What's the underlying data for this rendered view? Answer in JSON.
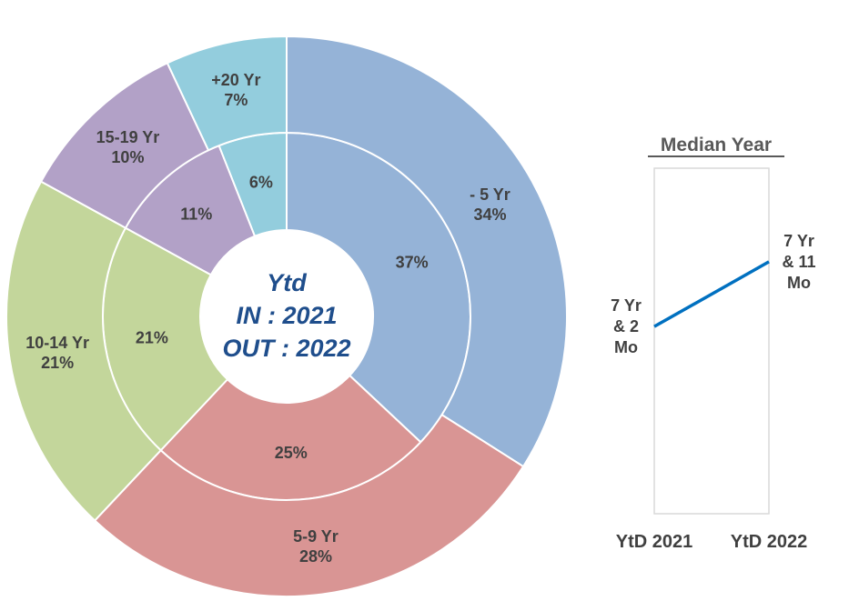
{
  "chart_data": [
    {
      "type": "pie",
      "subtype": "nested-donut",
      "center_text": [
        "Ytd",
        "IN : 2021",
        "OUT : 2022"
      ],
      "categories": [
        "- 5 Yr",
        "5-9 Yr",
        "10-14 Yr",
        "15-19 Yr",
        "+20 Yr"
      ],
      "colors": [
        "#95b3d7",
        "#d99594",
        "#c3d69b",
        "#b2a1c7",
        "#93cddd"
      ],
      "series": [
        {
          "ring": "inner",
          "values": [
            37,
            25,
            21,
            11,
            6
          ],
          "labels": [
            "37%",
            "25%",
            "21%",
            "11%",
            "6%"
          ]
        },
        {
          "ring": "outer",
          "values": [
            34,
            28,
            21,
            10,
            7
          ],
          "labels": [
            "34%",
            "28%",
            "21%",
            "10%",
            "7%"
          ]
        }
      ]
    },
    {
      "type": "line",
      "title": "Median Year",
      "categories": [
        "YtD 2021",
        "YtD 2022"
      ],
      "series": [
        {
          "values": [
            7.1667,
            7.9167
          ],
          "labels": [
            "7 Yr & 2 Mo",
            "7 Yr & 11 Mo"
          ],
          "color": "#0070c0"
        }
      ],
      "ylim": [
        5,
        9
      ],
      "grid": false,
      "legend": "none"
    }
  ]
}
